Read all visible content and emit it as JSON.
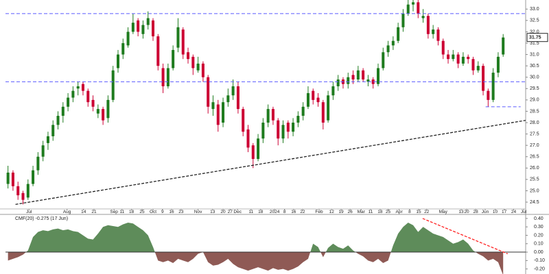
{
  "chart_data": [
    {
      "type": "candlestick",
      "candles": [
        [
          25.3,
          26.1,
          25.1,
          25.8
        ],
        [
          25.8,
          25.9,
          25.0,
          25.2
        ],
        [
          25.2,
          25.4,
          24.6,
          24.8
        ],
        [
          24.9,
          25.0,
          24.4,
          24.6
        ],
        [
          24.7,
          25.5,
          24.6,
          25.3
        ],
        [
          25.3,
          26.1,
          25.2,
          25.9
        ],
        [
          25.9,
          26.7,
          25.7,
          26.5
        ],
        [
          26.5,
          27.2,
          26.3,
          27.0
        ],
        [
          27.1,
          27.6,
          26.8,
          27.4
        ],
        [
          27.4,
          28.1,
          27.2,
          27.9
        ],
        [
          27.9,
          28.5,
          27.7,
          28.3
        ],
        [
          28.3,
          28.9,
          28.0,
          28.7
        ],
        [
          28.7,
          29.3,
          28.5,
          29.1
        ],
        [
          29.1,
          29.6,
          28.9,
          29.4
        ],
        [
          29.5,
          29.8,
          29.2,
          29.6
        ],
        [
          29.7,
          29.8,
          29.2,
          29.4
        ],
        [
          29.4,
          29.5,
          28.7,
          28.9
        ],
        [
          29.0,
          29.2,
          28.5,
          28.7
        ],
        [
          28.4,
          28.8,
          28.2,
          28.6
        ],
        [
          28.6,
          28.7,
          27.9,
          28.1
        ],
        [
          28.2,
          29.2,
          28.0,
          29.0
        ],
        [
          29.0,
          30.5,
          28.9,
          30.3
        ],
        [
          30.4,
          31.2,
          30.2,
          31.0
        ],
        [
          31.0,
          31.7,
          30.8,
          31.5
        ],
        [
          31.4,
          32.2,
          31.3,
          32.0
        ],
        [
          32.0,
          32.8,
          31.9,
          32.4
        ],
        [
          32.5,
          32.6,
          31.8,
          32.0
        ],
        [
          31.9,
          32.5,
          31.7,
          32.3
        ],
        [
          32.3,
          32.9,
          32.1,
          32.6
        ],
        [
          32.5,
          32.6,
          31.6,
          31.8
        ],
        [
          31.8,
          31.9,
          30.3,
          30.5
        ],
        [
          30.4,
          30.6,
          29.3,
          29.6
        ],
        [
          29.6,
          30.6,
          29.5,
          30.4
        ],
        [
          30.4,
          31.4,
          30.3,
          31.2
        ],
        [
          31.3,
          32.6,
          31.1,
          32.2
        ],
        [
          32.1,
          32.2,
          30.8,
          31.0
        ],
        [
          31.1,
          31.3,
          30.6,
          30.8
        ],
        [
          30.9,
          31.0,
          30.1,
          30.4
        ],
        [
          30.3,
          30.9,
          30.2,
          30.6
        ],
        [
          30.6,
          30.7,
          29.8,
          30.0
        ],
        [
          30.0,
          30.1,
          28.4,
          28.7
        ],
        [
          28.6,
          29.2,
          28.3,
          28.9
        ],
        [
          28.8,
          29.0,
          27.6,
          27.9
        ],
        [
          28.0,
          29.1,
          27.8,
          28.9
        ],
        [
          28.9,
          29.5,
          28.7,
          29.2
        ],
        [
          29.2,
          29.9,
          29.0,
          29.6
        ],
        [
          29.6,
          29.8,
          28.4,
          28.6
        ],
        [
          28.6,
          28.7,
          27.4,
          27.6
        ],
        [
          27.7,
          27.9,
          26.7,
          26.9
        ],
        [
          27.0,
          27.1,
          26.0,
          26.4
        ],
        [
          26.4,
          27.5,
          26.3,
          27.3
        ],
        [
          27.3,
          28.2,
          27.1,
          28.0
        ],
        [
          28.0,
          28.8,
          27.8,
          28.6
        ],
        [
          28.6,
          28.7,
          27.9,
          28.1
        ],
        [
          28.1,
          28.2,
          27.0,
          27.3
        ],
        [
          27.3,
          28.1,
          27.1,
          27.9
        ],
        [
          28.0,
          28.1,
          27.3,
          27.6
        ],
        [
          27.6,
          28.2,
          27.4,
          28.0
        ],
        [
          28.0,
          28.5,
          27.8,
          28.3
        ],
        [
          28.3,
          28.9,
          28.1,
          28.7
        ],
        [
          28.7,
          29.6,
          28.6,
          29.3
        ],
        [
          29.4,
          29.5,
          28.8,
          29.0
        ],
        [
          29.1,
          29.3,
          28.7,
          28.9
        ],
        [
          28.9,
          29.0,
          27.7,
          28.0
        ],
        [
          28.1,
          29.4,
          28.0,
          29.2
        ],
        [
          29.2,
          29.8,
          29.0,
          29.6
        ],
        [
          29.6,
          30.1,
          29.4,
          29.9
        ],
        [
          29.9,
          30.0,
          29.5,
          29.7
        ],
        [
          29.7,
          30.2,
          29.5,
          30.0
        ],
        [
          30.1,
          30.3,
          29.7,
          29.9
        ],
        [
          29.9,
          30.5,
          29.8,
          30.3
        ],
        [
          30.3,
          30.4,
          29.8,
          29.9
        ],
        [
          29.8,
          30.1,
          29.6,
          29.9
        ],
        [
          29.9,
          30.0,
          29.5,
          29.7
        ],
        [
          29.7,
          30.6,
          29.6,
          30.4
        ],
        [
          30.4,
          31.3,
          30.3,
          31.1
        ],
        [
          31.1,
          31.6,
          30.9,
          31.4
        ],
        [
          31.4,
          31.8,
          31.2,
          31.6
        ],
        [
          31.6,
          32.4,
          31.5,
          32.2
        ],
        [
          32.2,
          33.0,
          32.0,
          32.8
        ],
        [
          32.8,
          33.4,
          32.7,
          33.2
        ],
        [
          33.2,
          33.5,
          32.9,
          33.3
        ],
        [
          33.3,
          33.4,
          32.6,
          32.8
        ],
        [
          32.6,
          33.0,
          32.4,
          32.7
        ],
        [
          32.7,
          32.8,
          31.7,
          31.9
        ],
        [
          31.9,
          32.3,
          31.7,
          32.1
        ],
        [
          32.1,
          32.2,
          31.4,
          31.6
        ],
        [
          31.6,
          31.7,
          30.8,
          31.0
        ],
        [
          31.0,
          31.2,
          30.6,
          30.8
        ],
        [
          30.8,
          31.2,
          30.7,
          31.0
        ],
        [
          31.0,
          31.1,
          30.4,
          30.6
        ],
        [
          30.6,
          31.1,
          30.5,
          30.9
        ],
        [
          30.9,
          31.0,
          30.6,
          30.8
        ],
        [
          30.8,
          30.9,
          30.1,
          30.3
        ],
        [
          30.3,
          30.7,
          30.2,
          30.5
        ],
        [
          30.5,
          30.6,
          29.2,
          29.4
        ],
        [
          29.4,
          29.5,
          28.7,
          29.0
        ],
        [
          29.0,
          30.4,
          28.9,
          30.2
        ],
        [
          30.2,
          31.1,
          30.0,
          30.9
        ],
        [
          31.0,
          31.9,
          30.9,
          31.75
        ]
      ],
      "up_color": "#1e7b1e",
      "down_color": "#cc0033",
      "xlim": [
        -0.5,
        103.5
      ],
      "ylim": [
        24.2,
        33.4
      ],
      "xticks": [
        {
          "value": 4.2,
          "label": "Jul"
        },
        {
          "value": 11.8,
          "label": "Aug"
        },
        {
          "value": 15.1,
          "label": "14"
        },
        {
          "value": 17.2,
          "label": "21"
        },
        {
          "value": 21.2,
          "label": "Sep"
        },
        {
          "value": 22.8,
          "label": "11"
        },
        {
          "value": 24.7,
          "label": "18"
        },
        {
          "value": 26.8,
          "label": "25"
        },
        {
          "value": 29.0,
          "label": "Oct"
        },
        {
          "value": 30.9,
          "label": "9"
        },
        {
          "value": 32.7,
          "label": "16"
        },
        {
          "value": 34.6,
          "label": "23"
        },
        {
          "value": 38.0,
          "label": "Nov"
        },
        {
          "value": 40.9,
          "label": "13"
        },
        {
          "value": 43.0,
          "label": "20"
        },
        {
          "value": 44.4,
          "label": "27"
        },
        {
          "value": 45.9,
          "label": "Dec"
        },
        {
          "value": 48.6,
          "label": "11"
        },
        {
          "value": 50.5,
          "label": "18"
        },
        {
          "value": 53.3,
          "label": "2024"
        },
        {
          "value": 55.3,
          "label": "8"
        },
        {
          "value": 57.1,
          "label": "16"
        },
        {
          "value": 58.9,
          "label": "22"
        },
        {
          "value": 62.2,
          "label": "Feb"
        },
        {
          "value": 64.7,
          "label": "12"
        },
        {
          "value": 66.6,
          "label": "19"
        },
        {
          "value": 68.4,
          "label": "26"
        },
        {
          "value": 70.6,
          "label": "Mar"
        },
        {
          "value": 72.5,
          "label": "11"
        },
        {
          "value": 74.4,
          "label": "18"
        },
        {
          "value": 76.0,
          "label": "25"
        },
        {
          "value": 78.2,
          "label": "Apr"
        },
        {
          "value": 80.3,
          "label": "8"
        },
        {
          "value": 82.1,
          "label": "15"
        },
        {
          "value": 83.7,
          "label": "22"
        },
        {
          "value": 87.0,
          "label": "May"
        },
        {
          "value": 90.6,
          "label": "13"
        },
        {
          "value": 91.7,
          "label": "20"
        },
        {
          "value": 93.5,
          "label": "28"
        },
        {
          "value": 95.4,
          "label": "Jun"
        },
        {
          "value": 97.4,
          "label": "10"
        },
        {
          "value": 99.2,
          "label": "17"
        },
        {
          "value": 101.1,
          "label": "24"
        },
        {
          "value": 103.1,
          "label": "Jul"
        }
      ],
      "yticks": [
        24.5,
        {
          "value": 25,
          "label": "25.0"
        },
        25.5,
        {
          "value": 26,
          "label": "26.0"
        },
        26.5,
        {
          "value": 27,
          "label": "27.0"
        },
        27.5,
        {
          "value": 28,
          "label": "28.0"
        },
        28.5,
        {
          "value": 29,
          "label": "29.0"
        },
        29.5,
        {
          "value": 30,
          "label": "30.0"
        },
        30.5,
        {
          "value": 31,
          "label": "31.0"
        },
        31.5,
        {
          "value": 32,
          "label": "32.0"
        },
        32.5,
        {
          "value": 33,
          "label": "33.0"
        }
      ],
      "levels": [
        32.8,
        29.8
      ],
      "level_color": "#5b5bff",
      "support": {
        "y": 28.7,
        "x": [
          95.5,
          102.5
        ]
      },
      "trendline": {
        "x": [
          1.5,
          103.5
        ],
        "y": [
          24.4,
          28.1
        ],
        "color": "#222222"
      }
    },
    {
      "type": "area",
      "title": "CMF(20) -0.275 (17 Jun)",
      "values": [
        -0.1,
        -0.08,
        -0.06,
        -0.03,
        0.02,
        0.18,
        0.24,
        0.26,
        0.25,
        0.27,
        0.28,
        0.26,
        0.27,
        0.25,
        0.24,
        0.2,
        0.16,
        0.15,
        0.22,
        0.3,
        0.32,
        0.31,
        0.3,
        0.33,
        0.35,
        0.34,
        0.3,
        0.26,
        0.2,
        0.06,
        -0.1,
        -0.12,
        -0.1,
        -0.13,
        -0.08,
        -0.1,
        -0.12,
        -0.08,
        -0.02,
        0,
        -0.12,
        -0.16,
        -0.15,
        -0.12,
        -0.08,
        -0.14,
        -0.18,
        -0.2,
        -0.22,
        -0.2,
        -0.18,
        -0.2,
        -0.22,
        -0.19,
        -0.21,
        -0.2,
        -0.22,
        -0.2,
        -0.17,
        -0.12,
        -0.08,
        0.1,
        0.06,
        -0.06,
        0.05,
        0.1,
        0.06,
        0.04,
        0.08,
        0.02,
        -0.02,
        -0.05,
        -0.1,
        -0.12,
        -0.08,
        -0.13,
        -0.1,
        0.08,
        0.22,
        0.3,
        0.35,
        0.32,
        0.24,
        0.3,
        0.26,
        0.22,
        0.2,
        0.18,
        0.14,
        0.1,
        0.12,
        0.15,
        0.1,
        0.02,
        -0.02,
        -0.05,
        -0.1,
        -0.08,
        -0.12,
        -0.275
      ],
      "pos_color": "#5e8c5a",
      "neg_color": "#8f5a55",
      "xlim": [
        -0.5,
        103.5
      ],
      "ylim": [
        -0.26,
        0.44
      ],
      "yticks": [
        {
          "value": 0.4,
          "label": "0.40"
        },
        {
          "value": 0.3,
          "label": "0.30"
        },
        {
          "value": 0.2,
          "label": "0.20"
        },
        {
          "value": 0.1,
          "label": "0.10"
        },
        {
          "value": 0,
          "label": "0.00"
        },
        {
          "value": -0.1,
          "label": "-0.10"
        },
        {
          "value": -0.2,
          "label": "-0.20"
        }
      ],
      "trendline": {
        "x": [
          82.9,
          99.9
        ],
        "y": [
          0.4,
          -0.02
        ],
        "color": "#ff2020"
      }
    }
  ]
}
